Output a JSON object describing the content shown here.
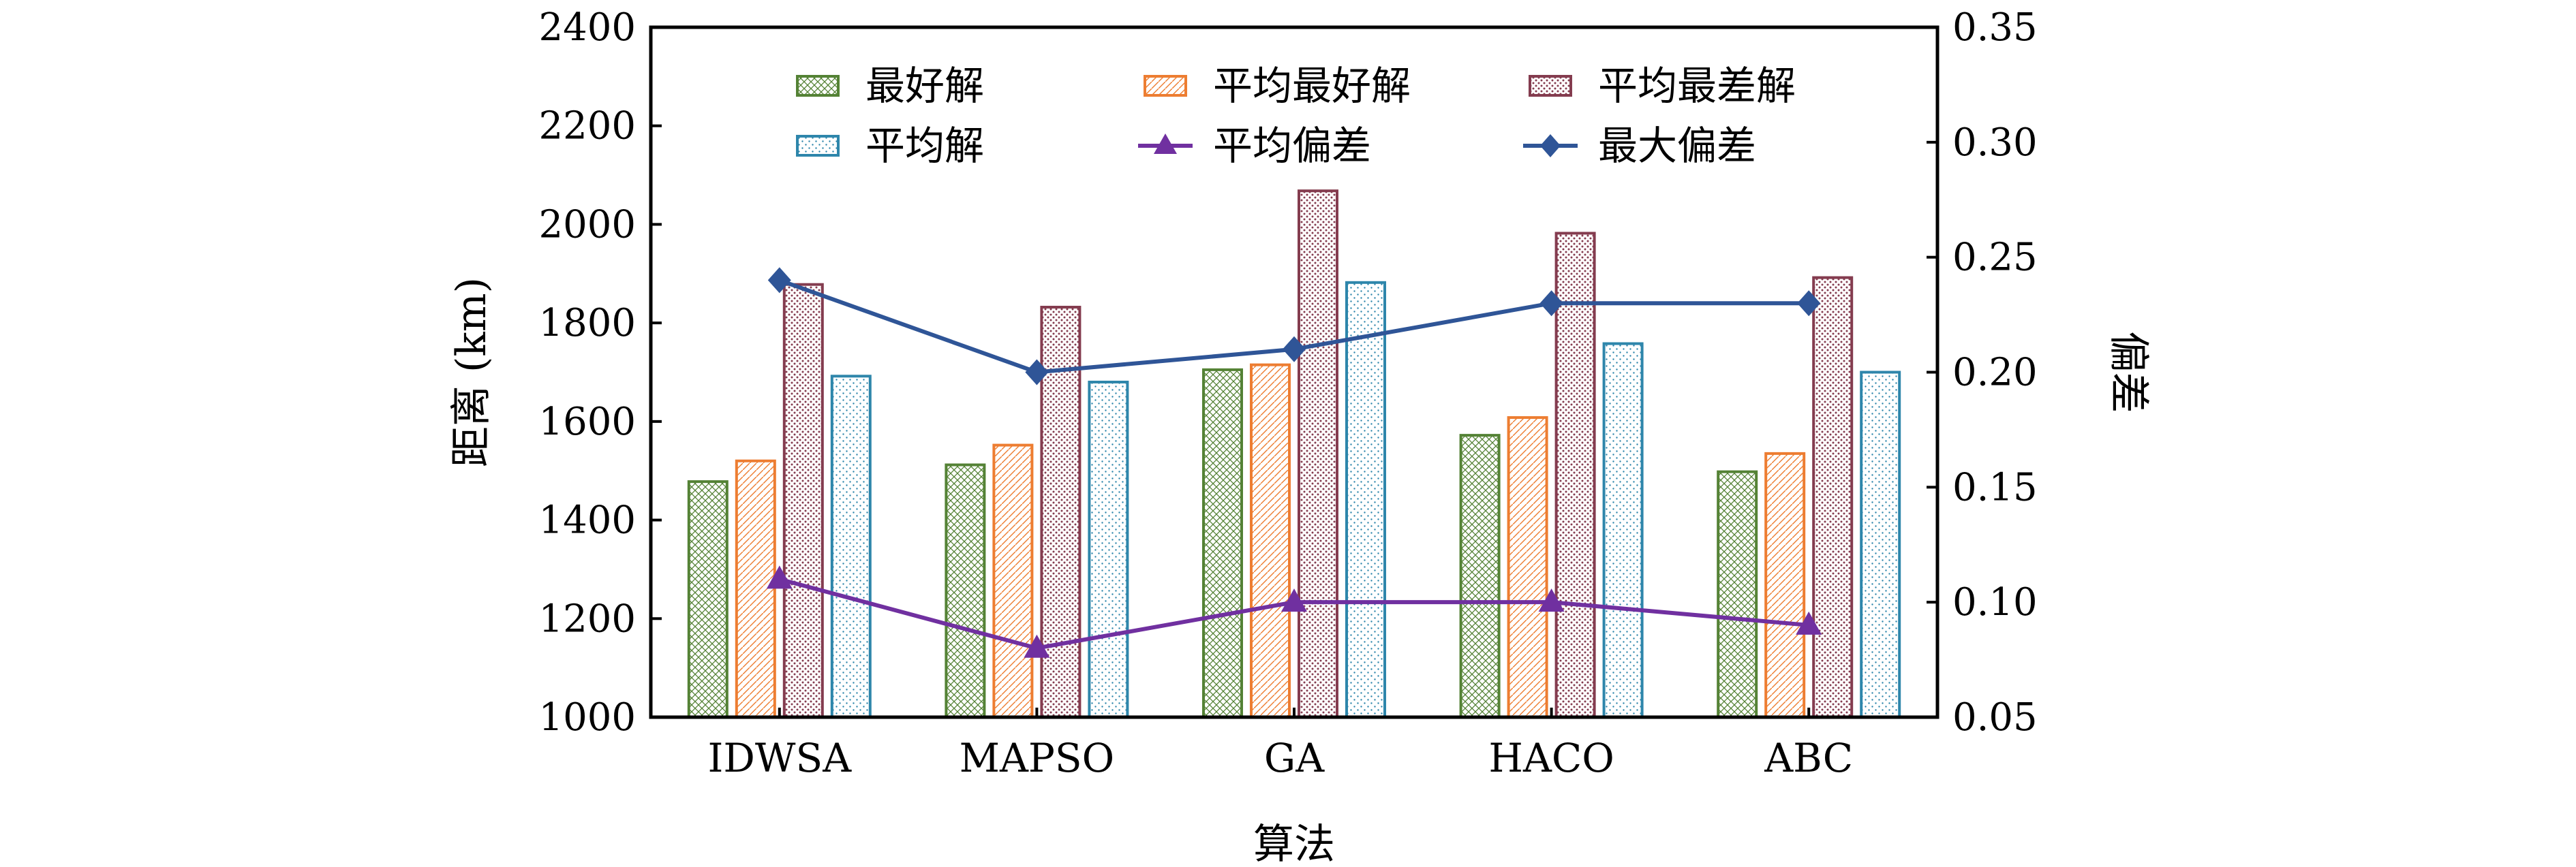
{
  "chart_data": {
    "type": "bar",
    "categories": [
      "IDWSA",
      "MAPSO",
      "GA",
      "HACO",
      "ABC"
    ],
    "xlabel": "算法",
    "ylabel": "距离 (km)",
    "y2label": "偏差",
    "ylim": [
      1000,
      2400
    ],
    "y2lim": [
      0.05,
      0.35
    ],
    "yticks": [
      "1000",
      "1200",
      "1400",
      "1600",
      "1800",
      "2000",
      "2200",
      "2400"
    ],
    "y2ticks": [
      "0.05",
      "0.10",
      "0.15",
      "0.20",
      "0.25",
      "0.30",
      "0.35"
    ],
    "grid": false,
    "legend_position": "top",
    "bar_series": [
      {
        "name": "最好解",
        "values": [
          1478,
          1512,
          1705,
          1572,
          1498
        ],
        "color": "#548235",
        "pattern": "crosshatch"
      },
      {
        "name": "平均最好解",
        "values": [
          1520,
          1552,
          1715,
          1608,
          1535
        ],
        "color": "#ED7D31",
        "pattern": "diagonal"
      },
      {
        "name": "平均最差解",
        "values": [
          1878,
          1832,
          2068,
          1982,
          1892
        ],
        "color": "#843C4F",
        "pattern": "dots"
      },
      {
        "name": "平均解",
        "values": [
          1692,
          1680,
          1882,
          1758,
          1700
        ],
        "color": "#2E86AB",
        "pattern": "dots"
      }
    ],
    "line_series": [
      {
        "name": "平均偏差",
        "values": [
          0.11,
          0.08,
          0.1,
          0.1,
          0.09
        ],
        "color": "#7030A0",
        "marker": "triangle",
        "axis": "right"
      },
      {
        "name": "最大偏差",
        "values": [
          0.24,
          0.2,
          0.21,
          0.23,
          0.23
        ],
        "color": "#2F5597",
        "marker": "diamond",
        "axis": "right"
      }
    ]
  }
}
